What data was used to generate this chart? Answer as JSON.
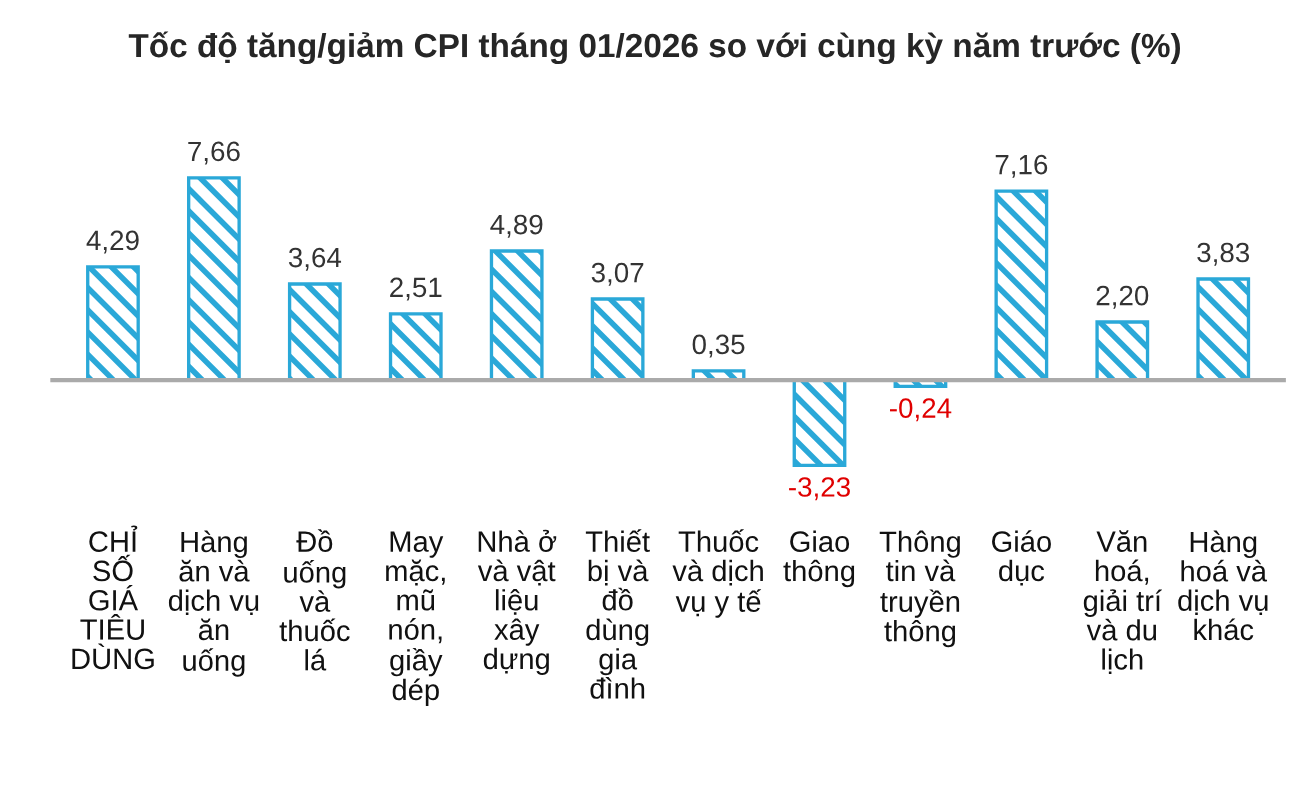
{
  "chart_data": {
    "type": "bar",
    "title": "Tốc độ tăng/giảm CPI tháng 01/2026 so với cùng kỳ năm trước (%)",
    "categories": [
      "CHỈ\nSỐ\nGIÁ\nTIÊU\nDÙNG",
      "Hàng\năn và\ndịch vụ\năn\nuống",
      "Đồ\nuống\nvà\nthuốc\nlá",
      "May\nmặc,\nmũ\nnón,\ngiầy\ndép",
      "Nhà ở\nvà vật\nliệu\nxây\ndựng",
      "Thiết\nbị và\nđồ\ndùng\ngia\nđình",
      "Thuốc\nvà dịch\nvụ y tế",
      "Giao\nthông",
      "Thông\ntin và\ntruyền\nthông",
      "Giáo\ndục",
      "Văn\nhoá,\ngiải trí\nvà du\nlịch",
      "Hàng\nhoá và\ndịch vụ\nkhác"
    ],
    "values": [
      4.29,
      7.66,
      3.64,
      2.51,
      4.89,
      3.07,
      0.35,
      -3.23,
      -0.24,
      7.16,
      2.2,
      3.83
    ],
    "value_labels": [
      "4,29",
      "7,66",
      "3,64",
      "2,51",
      "4,89",
      "3,07",
      "0,35",
      "-3,23",
      "-0,24",
      "7,16",
      "2,20",
      "3,83"
    ],
    "color": "#2aa8d8"
  }
}
